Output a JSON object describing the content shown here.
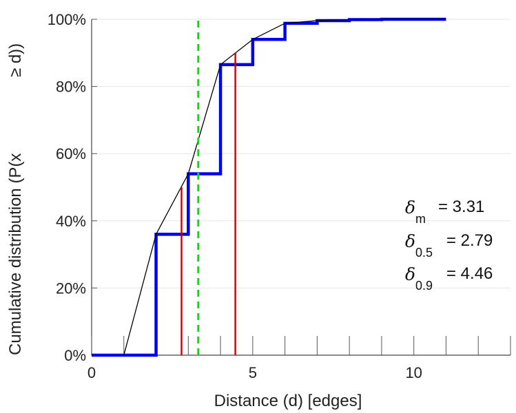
{
  "chart_data": {
    "type": "line",
    "xlabel": "Distance (d) [edges]",
    "ylabel_main": "Cumulative distribution (P(x",
    "ylabel_cont": "≥ d))",
    "xlim": [
      0,
      13
    ],
    "ylim": [
      0,
      100
    ],
    "x_ticks": [
      0,
      5,
      10
    ],
    "y_ticks": [
      0,
      20,
      40,
      60,
      80,
      100
    ],
    "x_tick_labels": [
      "0",
      "5",
      "10"
    ],
    "y_tick_labels": [
      "0%",
      "20%",
      "40%",
      "60%",
      "80%",
      "100%"
    ],
    "grid": "horizontal",
    "series": [
      {
        "kind": "step",
        "color": "#0000ee",
        "x": [
          0,
          1,
          2,
          3,
          4,
          5,
          6,
          7,
          8,
          9,
          10,
          11
        ],
        "y": [
          0,
          0,
          36,
          54,
          86.5,
          94,
          98.8,
          99.6,
          99.9,
          100,
          100,
          100
        ]
      },
      {
        "kind": "line",
        "color": "#000000",
        "x": [
          1,
          2,
          3,
          4,
          5,
          6,
          7,
          8,
          9,
          10,
          11
        ],
        "y": [
          0,
          36,
          54,
          86.5,
          94,
          98.8,
          99.6,
          99.9,
          100,
          100,
          100
        ]
      }
    ],
    "markers": [
      {
        "kind": "mean",
        "x": 3.31,
        "color": "#22cc22",
        "style": "dashed"
      },
      {
        "kind": "median",
        "x": 2.79,
        "y": 50,
        "color": "#cc0000",
        "style": "solid"
      },
      {
        "kind": "p90",
        "x": 4.46,
        "y": 90,
        "color": "#cc0000",
        "style": "solid"
      }
    ],
    "annotations": [
      {
        "symbol": "δ",
        "sub": "m",
        "value": "= 3.31"
      },
      {
        "symbol": "δ",
        "sub": "0.5",
        "value": "= 2.79"
      },
      {
        "symbol": "δ",
        "sub": "0.9",
        "value": "= 4.46"
      }
    ]
  }
}
